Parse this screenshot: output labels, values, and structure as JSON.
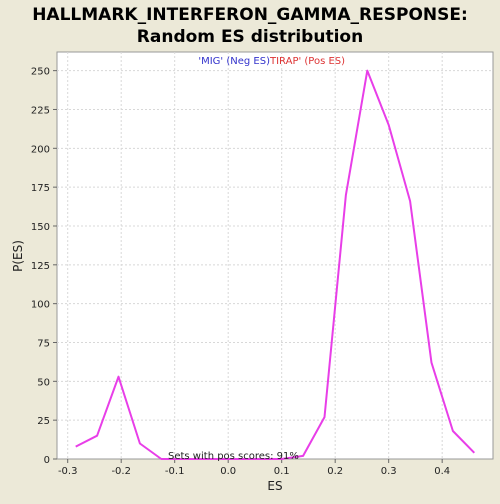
{
  "chart_data": {
    "type": "line",
    "title_line1": "HALLMARK_INTERFERON_GAMMA_RESPONSE:",
    "title_line2": "Random ES distribution",
    "xlabel": "ES",
    "ylabel": "P(ES)",
    "xlim": [
      -0.32,
      0.495
    ],
    "ylim": [
      0,
      262
    ],
    "x_ticks": [
      -0.3,
      -0.2,
      -0.1,
      0.0,
      0.1,
      0.2,
      0.3,
      0.4
    ],
    "x_tick_labels": [
      "-0.3",
      "-0.2",
      "-0.1",
      "0.0",
      "0.1",
      "0.2",
      "0.3",
      "0.4"
    ],
    "y_ticks": [
      0,
      25,
      50,
      75,
      100,
      125,
      150,
      175,
      200,
      225,
      250
    ],
    "y_tick_labels": [
      "0",
      "25",
      "50",
      "75",
      "100",
      "125",
      "150",
      "175",
      "200",
      "225",
      "250"
    ],
    "grid": true,
    "neg_label": "'MIG' (Neg ES)",
    "pos_label": "TIRAP' (Pos ES)",
    "neg_color": "#3333cc",
    "pos_color": "#dd3333",
    "line_color": "#e83ee8",
    "annotation": "Sets with pos scores: 91%",
    "series": [
      {
        "x": [
          -0.285,
          -0.245,
          -0.205,
          -0.165,
          -0.125,
          -0.085,
          0.1,
          0.14,
          0.18,
          0.22,
          0.26,
          0.3,
          0.34,
          0.38,
          0.42,
          0.46
        ],
        "y": [
          8,
          15,
          53,
          10,
          0,
          0,
          0,
          2,
          27,
          170,
          250,
          215,
          166,
          62,
          18,
          4
        ]
      }
    ]
  }
}
